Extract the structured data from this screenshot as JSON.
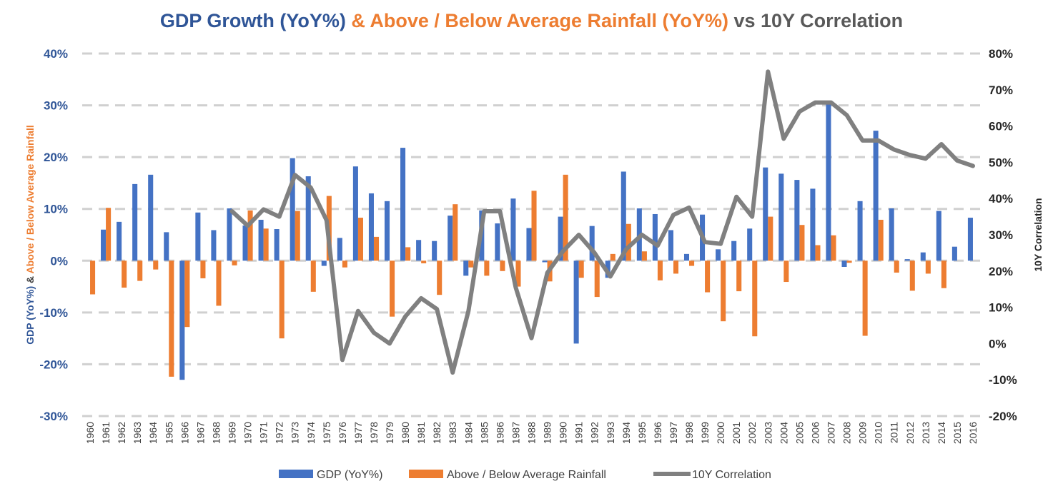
{
  "title": {
    "part1": "GDP Growth (YoY%)",
    "part2": " & Above / Below Average Rainfall (YoY%)",
    "part3": " vs 10Y Correlation",
    "color1": "#2f5597",
    "color2": "#ed7d31",
    "color3": "#595959"
  },
  "chart_data": {
    "type": "bar",
    "title": "GDP Growth (YoY%) & Above / Below Average Rainfall (YoY%) vs 10Y Correlation",
    "x": [
      "1960",
      "1961",
      "1962",
      "1963",
      "1964",
      "1965",
      "1966",
      "1967",
      "1968",
      "1969",
      "1970",
      "1971",
      "1972",
      "1973",
      "1974",
      "1975",
      "1976",
      "1977",
      "1978",
      "1979",
      "1980",
      "1981",
      "1982",
      "1983",
      "1984",
      "1985",
      "1986",
      "1987",
      "1988",
      "1989",
      "1990",
      "1991",
      "1992",
      "1993",
      "1994",
      "1995",
      "1996",
      "1997",
      "1998",
      "1999",
      "2000",
      "2001",
      "2002",
      "2003",
      "2004",
      "2005",
      "2006",
      "2007",
      "2008",
      "2009",
      "2010",
      "2011",
      "2012",
      "2013",
      "2014",
      "2015",
      "2016"
    ],
    "ylabel_left_parts": [
      "GDP (YoY%)",
      " & ",
      "Above / Below Average Rainfall"
    ],
    "ylabel_right": "10Y Correlation",
    "ylim_left": [
      -30,
      40
    ],
    "ylim_right": [
      -20,
      80
    ],
    "left_ticks": [
      "-30%",
      "-20%",
      "-10%",
      "0%",
      "10%",
      "20%",
      "30%",
      "40%"
    ],
    "right_ticks": [
      "-20%",
      "-10%",
      "0%",
      "10%",
      "20%",
      "30%",
      "40%",
      "50%",
      "60%",
      "70%",
      "80%"
    ],
    "grid": true,
    "legend_position": "bottom",
    "series": [
      {
        "name": "GDP (YoY%)",
        "type": "bar",
        "axis": "left",
        "color": "#4472c4",
        "values": [
          null,
          6.0,
          7.5,
          14.8,
          16.6,
          5.5,
          -23.0,
          9.3,
          5.9,
          10.1,
          6.8,
          7.9,
          6.1,
          19.8,
          16.3,
          -1.0,
          4.4,
          18.2,
          13.0,
          11.5,
          21.8,
          4.0,
          3.8,
          8.7,
          -2.9,
          9.7,
          7.2,
          12.0,
          6.3,
          -0.3,
          8.5,
          -16.0,
          6.7,
          -3.3,
          17.2,
          10.1,
          9.0,
          5.9,
          1.3,
          8.9,
          2.2,
          3.8,
          6.2,
          18.0,
          16.8,
          15.6,
          13.9,
          30.6,
          -1.2,
          11.5,
          25.1,
          10.1,
          0.3,
          1.6,
          9.6,
          2.7,
          8.3
        ]
      },
      {
        "name": "Above / Below Average Rainfall",
        "type": "bar",
        "axis": "left",
        "color": "#ed7d31",
        "values": [
          -6.5,
          10.2,
          -5.2,
          -3.9,
          -1.7,
          -22.4,
          -12.8,
          -3.4,
          -8.7,
          -0.9,
          9.7,
          6.2,
          -15.0,
          9.6,
          -6.0,
          12.5,
          -1.3,
          8.3,
          4.6,
          -10.8,
          2.6,
          -0.5,
          -6.6,
          10.9,
          -1.3,
          -2.9,
          -2.0,
          -5.0,
          13.5,
          -4.0,
          16.6,
          -3.3,
          -7.0,
          1.3,
          7.1,
          1.8,
          -3.8,
          -2.5,
          -1.0,
          -6.1,
          -11.7,
          -5.9,
          -14.6,
          8.5,
          -4.1,
          6.9,
          3.0,
          4.9,
          -0.4,
          -14.5,
          7.9,
          -2.3,
          -5.8,
          -2.5,
          -5.3,
          null,
          null
        ]
      },
      {
        "name": "10Y Correlation",
        "type": "line",
        "axis": "right",
        "color": "#808080",
        "values": [
          null,
          null,
          null,
          null,
          null,
          null,
          null,
          null,
          null,
          36.5,
          32.5,
          37.0,
          35.0,
          46.5,
          43.0,
          34.0,
          -4.5,
          9.0,
          3.0,
          0.0,
          7.5,
          12.5,
          9.5,
          -8.0,
          9.0,
          36.5,
          36.5,
          15.5,
          1.5,
          19.5,
          25.5,
          30.0,
          25.0,
          18.5,
          26.0,
          30.0,
          27.0,
          35.5,
          37.5,
          28.0,
          27.5,
          40.5,
          35.0,
          75.0,
          56.5,
          64.0,
          66.5,
          66.5,
          63.0,
          56.0,
          56.0,
          53.5,
          52.0,
          51.0,
          55.0,
          50.5,
          49.0
        ]
      }
    ]
  }
}
